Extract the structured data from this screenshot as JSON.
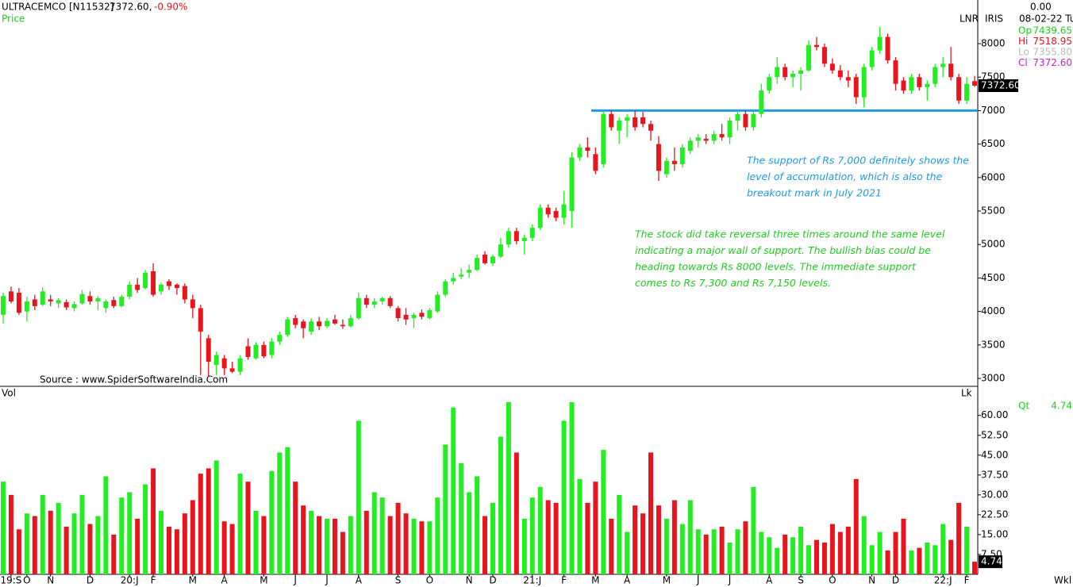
{
  "chart_data": {
    "type": "candlestick",
    "title": "ULTRACEMCO [N11532]",
    "last_price": "7372.60,",
    "change": "-0.90%",
    "price_label": "Price",
    "top_right_value": "0.00",
    "lnr_label": "LNR",
    "iris_label": "IRIS",
    "date_label": "08-02-22 Tu",
    "ohlc_info": [
      {
        "name": "Op",
        "label": "7439.65"
      },
      {
        "name": "Hi",
        "label": "7518.95"
      },
      {
        "name": "Lo",
        "label": "7355.80"
      },
      {
        "name": "Cl",
        "label": "7372.60"
      }
    ],
    "price_tag": {
      "value": 7372.6,
      "label": "7372.60"
    },
    "source": "Source : www.SpiderSoftwareIndia.Com",
    "annotations": [
      {
        "lines": [
          "The support of Rs 7,000 definitely shows the",
          "level of accumulation, which is also the",
          "breakout mark in July 2021"
        ],
        "color": "#1e9be0"
      },
      {
        "lines": [
          "The stock did take reversal three times around the same level",
          "indicating a major wall of support. The bullish bias could be",
          "heading towards Rs 8000 levels. The immediate support",
          "comes to Rs 7,300 and Rs 7,150 levels."
        ],
        "color": "#22cc22"
      }
    ],
    "support_line": 7000,
    "up_color": "#22ee22",
    "down_color": "#e8141e",
    "categories": [
      null,
      "19:S",
      null,
      "O",
      null,
      null,
      "N",
      null,
      null,
      null,
      null,
      "D",
      null,
      null,
      null,
      null,
      "20:J",
      null,
      null,
      "F",
      null,
      null,
      null,
      null,
      "M",
      null,
      null,
      null,
      "A",
      null,
      null,
      null,
      null,
      "M",
      null,
      null,
      null,
      "J",
      null,
      null,
      null,
      "J",
      null,
      null,
      null,
      "A",
      null,
      null,
      null,
      null,
      "S",
      null,
      null,
      null,
      "O",
      null,
      null,
      null,
      null,
      "N",
      null,
      null,
      "D",
      null,
      null,
      null,
      null,
      "21:J",
      null,
      null,
      null,
      "F",
      null,
      null,
      null,
      "M",
      null,
      null,
      null,
      "A",
      null,
      null,
      null,
      null,
      "M",
      null,
      null,
      null,
      "J",
      null,
      null,
      null,
      "J",
      null,
      null,
      null,
      null,
      "A",
      null,
      null,
      null,
      "S",
      null,
      null,
      null,
      "O",
      null,
      null,
      null,
      null,
      "N",
      null,
      null,
      "D",
      null,
      null,
      null,
      null,
      null,
      "22:J",
      null,
      null,
      "F",
      null
    ],
    "open": [
      3950,
      4300,
      4280,
      4000,
      4180,
      4100,
      4180,
      4120,
      4140,
      4050,
      4120,
      4230,
      4150,
      4050,
      4170,
      4080,
      4220,
      4400,
      4350,
      4600,
      4300,
      4450,
      4400,
      4380,
      4180,
      4050,
      3600,
      3200,
      3300,
      3150,
      3100,
      3480,
      3300,
      3500,
      3350,
      3550,
      3650,
      3900,
      3850,
      3700,
      3850,
      3780,
      3880,
      3800,
      3780,
      3900,
      4200,
      4100,
      4150,
      4200,
      4050,
      3950,
      3900,
      3980,
      3900,
      4000,
      4250,
      4450,
      4520,
      4580,
      4620,
      4850,
      4720,
      4820,
      5000,
      5200,
      5050,
      5100,
      5250,
      5550,
      5500,
      5400,
      5500,
      6300,
      6450,
      6350,
      6200,
      6950,
      6700,
      6850,
      6900,
      6900,
      6800,
      6500,
      6050,
      6250,
      6200,
      6400,
      6550,
      6580,
      6550,
      6650,
      6600,
      6850,
      6950,
      6750,
      6950,
      7300,
      7500,
      7650,
      7500,
      7550,
      7600,
      7980,
      7950,
      7700,
      7600,
      7500,
      7500,
      7200,
      7650,
      7900,
      8100,
      7750,
      7450,
      7300,
      7500,
      7350,
      7400,
      7650,
      7700,
      7500,
      7150,
      7439.65
    ],
    "high": [
      4280,
      4370,
      4350,
      4220,
      4250,
      4360,
      4250,
      4200,
      4180,
      4150,
      4320,
      4300,
      4230,
      4180,
      4220,
      4250,
      4450,
      4500,
      4620,
      4720,
      4430,
      4480,
      4420,
      4420,
      4250,
      4100,
      3650,
      3400,
      3350,
      3250,
      3350,
      3600,
      3540,
      3550,
      3600,
      3700,
      3920,
      3950,
      3880,
      3900,
      3920,
      3900,
      3950,
      3880,
      3950,
      4280,
      4250,
      4200,
      4220,
      4230,
      4080,
      4050,
      3980,
      4030,
      4050,
      4300,
      4480,
      4580,
      4650,
      4700,
      4850,
      4900,
      4850,
      5100,
      5250,
      5250,
      5150,
      5300,
      5600,
      5600,
      5550,
      5800,
      6380,
      6500,
      6600,
      6450,
      7000,
      7000,
      6900,
      6950,
      7000,
      6980,
      6850,
      6620,
      6300,
      6450,
      6500,
      6600,
      6650,
      6650,
      6700,
      6800,
      6900,
      7000,
      7000,
      7000,
      7400,
      7550,
      7800,
      7700,
      7600,
      7650,
      8050,
      8100,
      8000,
      7780,
      7680,
      7600,
      7550,
      7700,
      7950,
      8250,
      8150,
      7800,
      7500,
      7550,
      7550,
      7450,
      7700,
      7800,
      7950,
      7550,
      7500,
      7518.95
    ],
    "low": [
      3820,
      4120,
      3950,
      3850,
      4020,
      4080,
      4080,
      4050,
      4020,
      4000,
      4100,
      4100,
      4020,
      3980,
      4050,
      4060,
      4180,
      4280,
      4330,
      4220,
      4250,
      4320,
      4250,
      4120,
      3900,
      3050,
      3030,
      3050,
      3050,
      3080,
      3050,
      3280,
      3280,
      3300,
      3300,
      3500,
      3620,
      3750,
      3600,
      3650,
      3720,
      3750,
      3800,
      3740,
      3760,
      3880,
      4050,
      4050,
      4100,
      4050,
      3850,
      3800,
      3750,
      3880,
      3880,
      3980,
      4220,
      4400,
      4480,
      4500,
      4600,
      4700,
      4680,
      4800,
      4950,
      5000,
      4850,
      5050,
      5220,
      5400,
      5350,
      5300,
      5250,
      6250,
      6300,
      6050,
      6150,
      6700,
      6500,
      6600,
      6700,
      6750,
      6550,
      5950,
      6000,
      6100,
      6150,
      6350,
      6450,
      6500,
      6500,
      6550,
      6500,
      6700,
      6700,
      6700,
      6900,
      7250,
      7400,
      7450,
      7350,
      7300,
      7580,
      7900,
      7650,
      7550,
      7450,
      7350,
      7100,
      7050,
      7600,
      7850,
      7700,
      7300,
      7250,
      7250,
      7300,
      7150,
      7350,
      7500,
      7450,
      7100,
      7100,
      7355.8
    ],
    "close": [
      4230,
      4150,
      3980,
      4150,
      4080,
      4300,
      4150,
      4170,
      4060,
      4110,
      4260,
      4150,
      4200,
      4150,
      4080,
      4220,
      4400,
      4320,
      4580,
      4250,
      4400,
      4380,
      4350,
      4180,
      4050,
      3700,
      3250,
      3350,
      3150,
      3100,
      3300,
      3320,
      3500,
      3330,
      3550,
      3650,
      3880,
      3800,
      3750,
      3850,
      3780,
      3860,
      3820,
      3780,
      3900,
      4200,
      4100,
      4150,
      4200,
      4080,
      3900,
      3880,
      3950,
      3920,
      4020,
      4250,
      4450,
      4500,
      4550,
      4620,
      4800,
      4720,
      4820,
      5000,
      5200,
      5050,
      5100,
      5250,
      5550,
      5450,
      5400,
      5600,
      6300,
      6450,
      6400,
      6100,
      6950,
      6750,
      6850,
      6900,
      6750,
      6800,
      6700,
      6100,
      6250,
      6200,
      6450,
      6550,
      6600,
      6550,
      6650,
      6600,
      6850,
      6950,
      6750,
      6950,
      7300,
      7500,
      7650,
      7500,
      7550,
      7600,
      7980,
      7950,
      7700,
      7600,
      7500,
      7450,
      7200,
      7650,
      7900,
      8100,
      7750,
      7400,
      7300,
      7500,
      7350,
      7400,
      7650,
      7700,
      7500,
      7150,
      7400,
      7372.6
    ],
    "ylim": [
      2882,
      8652
    ],
    "yticks": [
      3000,
      3500,
      4000,
      4500,
      5000,
      5500,
      6000,
      6500,
      7000,
      7500,
      8000
    ],
    "volume_label": "Vol",
    "volume_unit": "Lk",
    "volume": [
      35,
      30,
      17,
      23,
      22,
      30,
      24,
      27,
      18,
      23,
      30,
      19,
      22,
      37,
      15,
      29,
      31,
      21,
      34,
      40,
      24,
      18,
      17,
      23,
      28,
      38,
      40,
      43,
      20,
      19,
      38,
      35,
      24,
      22,
      39,
      46,
      48,
      35,
      26,
      24,
      22,
      21,
      21,
      16,
      22,
      58,
      24,
      31,
      29,
      22,
      27,
      23,
      21,
      20,
      20,
      29,
      49,
      63,
      42,
      31,
      37,
      22,
      27,
      52,
      65,
      46,
      21,
      29,
      33,
      28,
      27,
      58,
      65,
      36,
      27,
      35,
      47,
      21,
      30,
      16,
      26,
      23,
      46,
      26,
      21,
      28,
      19,
      28,
      17,
      15,
      17,
      18,
      12,
      17,
      20,
      33,
      16,
      14,
      10,
      15,
      14,
      18,
      11,
      13,
      12,
      19,
      16,
      18,
      36,
      22,
      11,
      16,
      9,
      16,
      21,
      9,
      10,
      12,
      11,
      19,
      13,
      27,
      18,
      4.74
    ],
    "y2lim": [
      0,
      71
    ],
    "y2ticks": [
      {
        "value": 7.5,
        "label": "7.50"
      },
      {
        "value": 15,
        "label": "15.00"
      },
      {
        "value": 22.5,
        "label": "22.50"
      },
      {
        "value": 30,
        "label": "30.00"
      },
      {
        "value": 37.5,
        "label": "37.50"
      },
      {
        "value": 45,
        "label": "45.00"
      },
      {
        "value": 52.5,
        "label": "52.50"
      },
      {
        "value": 60,
        "label": "60.00"
      }
    ],
    "volume_info": {
      "name": "Qt",
      "label": "4.74"
    },
    "volume_tag": {
      "value": 4.74,
      "label": "4.74"
    },
    "period": "Wkl"
  }
}
